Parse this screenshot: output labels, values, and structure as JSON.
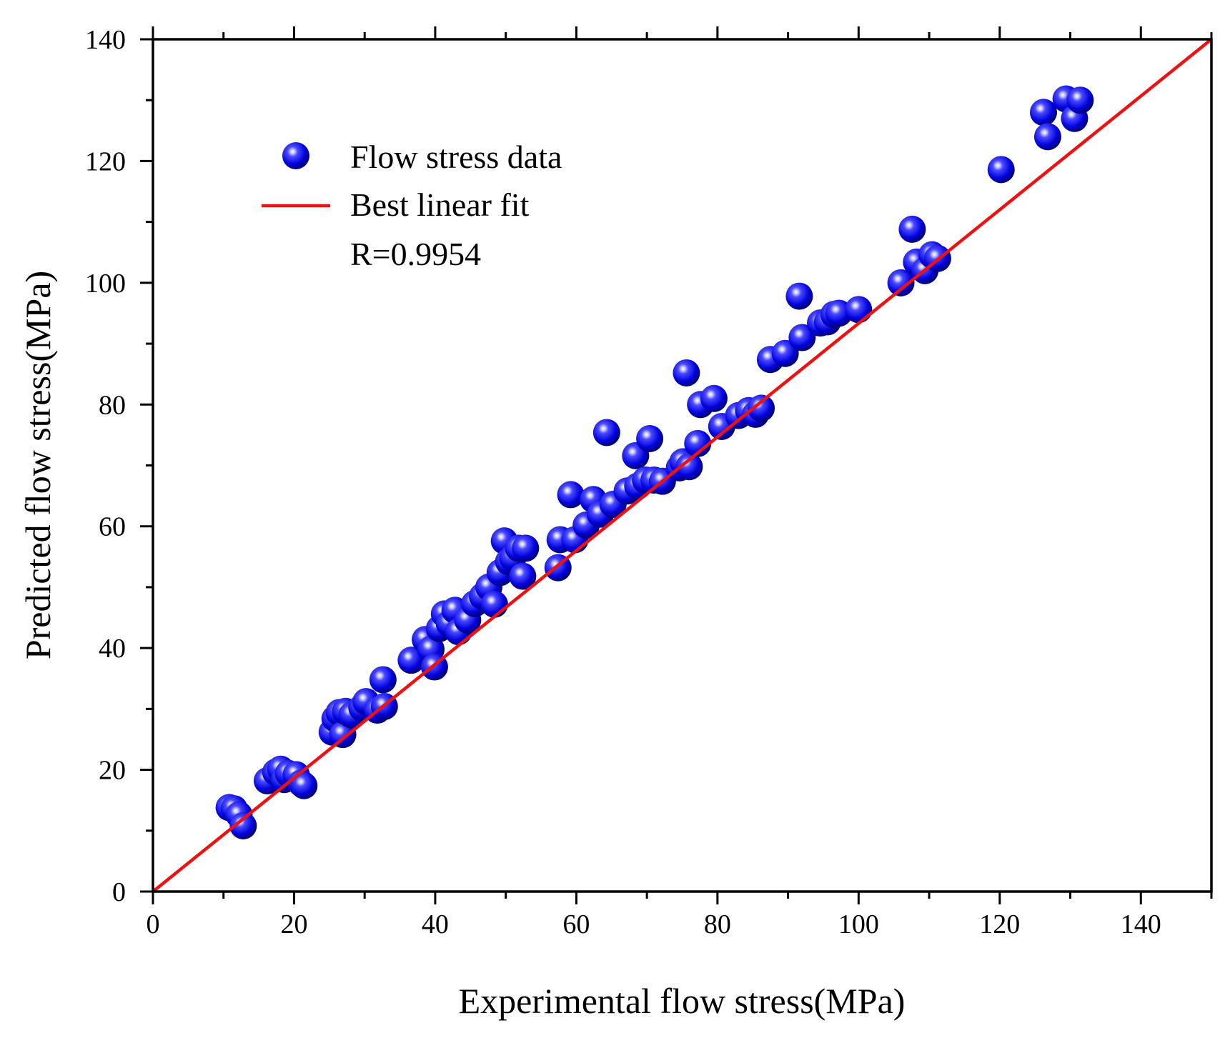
{
  "chart_data": {
    "type": "scatter",
    "title": "",
    "xlabel": "Experimental flow stress(MPa)",
    "ylabel": "Predicted flow stress(MPa)",
    "xlim": [
      0,
      150
    ],
    "ylim": [
      0,
      140
    ],
    "xticks": [
      "0",
      "20",
      "40",
      "60",
      "80",
      "100",
      "120",
      "140"
    ],
    "yticks": [
      "0",
      "20",
      "40",
      "60",
      "80",
      "100",
      "120",
      "140"
    ],
    "grid": false,
    "legend_position": "top-left",
    "annotation": "R=0.9954",
    "colors": {
      "points": "#1010e0",
      "fit_line": "#ee1111"
    },
    "series": [
      {
        "name": "Flow stress data",
        "kind": "scatter",
        "points": [
          [
            10.8,
            13.8
          ],
          [
            11.5,
            13.6
          ],
          [
            12.2,
            12.6
          ],
          [
            12.8,
            10.8
          ],
          [
            16.2,
            18.2
          ],
          [
            17.4,
            19.6
          ],
          [
            18.1,
            20.1
          ],
          [
            18.6,
            18.4
          ],
          [
            19.2,
            19.4
          ],
          [
            20.3,
            19.2
          ],
          [
            21.0,
            17.8
          ],
          [
            21.4,
            17.4
          ],
          [
            25.4,
            26.2
          ],
          [
            25.8,
            28.4
          ],
          [
            26.4,
            29.4
          ],
          [
            26.9,
            25.8
          ],
          [
            27.3,
            29.6
          ],
          [
            28.2,
            29.0
          ],
          [
            29.6,
            30.2
          ],
          [
            30.2,
            31.2
          ],
          [
            31.8,
            29.8
          ],
          [
            32.6,
            34.8
          ],
          [
            32.8,
            30.4
          ],
          [
            36.6,
            38.0
          ],
          [
            38.6,
            41.4
          ],
          [
            39.4,
            39.8
          ],
          [
            39.9,
            36.9
          ],
          [
            40.6,
            43.2
          ],
          [
            41.3,
            45.6
          ],
          [
            42.0,
            44.0
          ],
          [
            42.8,
            46.2
          ],
          [
            43.3,
            42.7
          ],
          [
            44.6,
            44.6
          ],
          [
            45.6,
            47.3
          ],
          [
            46.7,
            48.5
          ],
          [
            47.6,
            50.0
          ],
          [
            48.4,
            47.2
          ],
          [
            49.2,
            52.4
          ],
          [
            49.8,
            57.6
          ],
          [
            50.4,
            54.2
          ],
          [
            51.0,
            54.8
          ],
          [
            51.8,
            56.4
          ],
          [
            52.4,
            51.8
          ],
          [
            52.8,
            56.4
          ],
          [
            57.4,
            53.2
          ],
          [
            57.7,
            57.8
          ],
          [
            59.2,
            65.2
          ],
          [
            59.8,
            57.8
          ],
          [
            61.4,
            60.2
          ],
          [
            62.4,
            64.4
          ],
          [
            63.4,
            62.0
          ],
          [
            64.3,
            75.4
          ],
          [
            65.2,
            63.6
          ],
          [
            67.2,
            65.8
          ],
          [
            68.4,
            71.6
          ],
          [
            68.7,
            66.6
          ],
          [
            69.8,
            67.6
          ],
          [
            70.4,
            74.4
          ],
          [
            71.0,
            67.6
          ],
          [
            72.2,
            67.4
          ],
          [
            74.6,
            69.6
          ],
          [
            75.1,
            70.6
          ],
          [
            75.6,
            85.2
          ],
          [
            76.0,
            69.8
          ],
          [
            77.2,
            73.6
          ],
          [
            77.6,
            80.0
          ],
          [
            79.5,
            81.0
          ],
          [
            80.6,
            76.4
          ],
          [
            83.0,
            78.2
          ],
          [
            84.4,
            79.0
          ],
          [
            85.4,
            78.4
          ],
          [
            86.2,
            79.4
          ],
          [
            87.5,
            87.4
          ],
          [
            89.6,
            88.4
          ],
          [
            91.6,
            97.8
          ],
          [
            92.0,
            91.0
          ],
          [
            94.6,
            93.4
          ],
          [
            95.6,
            93.6
          ],
          [
            96.5,
            94.8
          ],
          [
            97.2,
            95.0
          ],
          [
            100.0,
            95.6
          ],
          [
            106.0,
            100.0
          ],
          [
            107.6,
            108.8
          ],
          [
            108.2,
            103.4
          ],
          [
            109.4,
            102.0
          ],
          [
            110.4,
            104.6
          ],
          [
            111.2,
            104.0
          ],
          [
            120.2,
            118.6
          ],
          [
            126.2,
            128.0
          ],
          [
            126.8,
            124.0
          ],
          [
            129.4,
            130.2
          ],
          [
            130.6,
            127.0
          ],
          [
            131.4,
            130.0
          ]
        ]
      },
      {
        "name": "Best linear fit",
        "kind": "line",
        "x": [
          0,
          150
        ],
        "y": [
          0,
          140
        ]
      }
    ]
  }
}
